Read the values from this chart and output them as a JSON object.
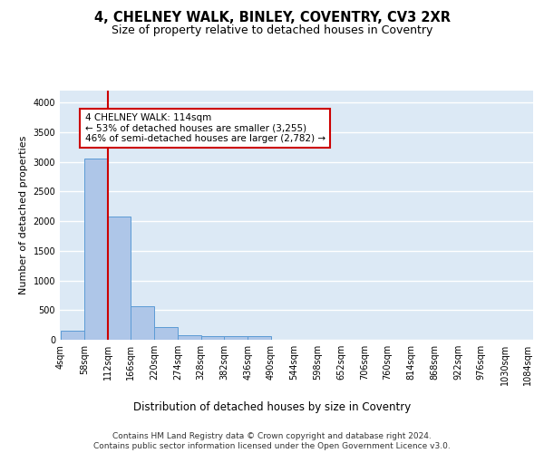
{
  "title1": "4, CHELNEY WALK, BINLEY, COVENTRY, CV3 2XR",
  "title2": "Size of property relative to detached houses in Coventry",
  "xlabel": "Distribution of detached houses by size in Coventry",
  "ylabel": "Number of detached properties",
  "bin_edges": [
    4,
    58,
    112,
    166,
    220,
    274,
    328,
    382,
    436,
    490,
    544,
    598,
    652,
    706,
    760,
    814,
    868,
    922,
    976,
    1030,
    1084
  ],
  "bar_heights": [
    150,
    3060,
    2070,
    560,
    215,
    80,
    60,
    55,
    60,
    0,
    0,
    0,
    0,
    0,
    0,
    0,
    0,
    0,
    0,
    0
  ],
  "bar_color": "#aec6e8",
  "bar_edge_color": "#5b9bd5",
  "bg_color": "#dce9f5",
  "grid_color": "#ffffff",
  "property_size": 114,
  "vline_color": "#cc0000",
  "annotation_text": "4 CHELNEY WALK: 114sqm\n← 53% of detached houses are smaller (3,255)\n46% of semi-detached houses are larger (2,782) →",
  "annotation_box_color": "#ffffff",
  "annotation_box_edge_color": "#cc0000",
  "ylim": [
    0,
    4200
  ],
  "footer_text": "Contains HM Land Registry data © Crown copyright and database right 2024.\nContains public sector information licensed under the Open Government Licence v3.0.",
  "title1_fontsize": 10.5,
  "title2_fontsize": 9,
  "xlabel_fontsize": 8.5,
  "ylabel_fontsize": 8,
  "tick_fontsize": 7,
  "footer_fontsize": 6.5,
  "annotation_fontsize": 7.5
}
